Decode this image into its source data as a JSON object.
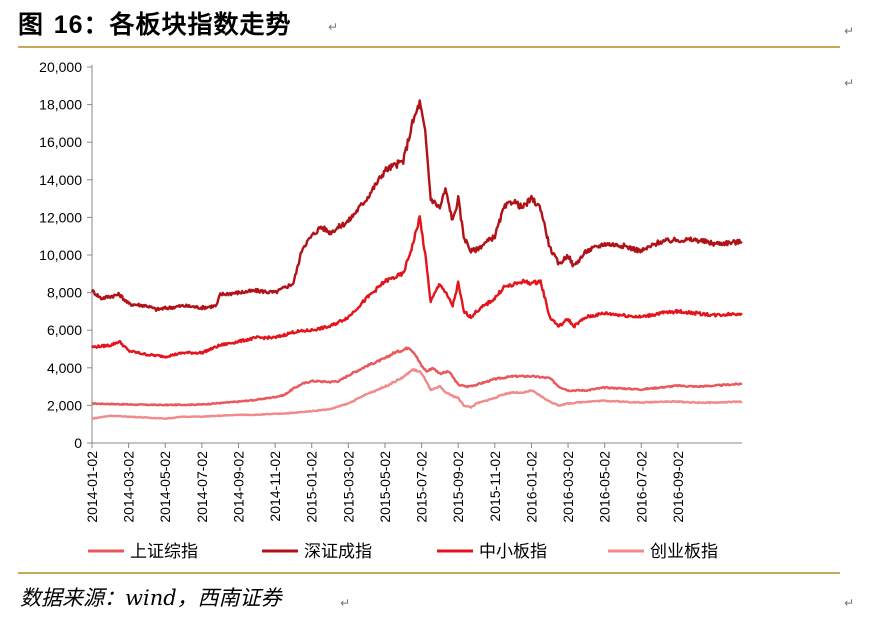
{
  "figure": {
    "title_prefix": "图 ",
    "title_number": "16",
    "title_text": "：各板块指数走势",
    "source": "数据来源：wind，西南证券",
    "return_mark": "↵"
  },
  "colors": {
    "rule": "#c8a85a",
    "axis": "#888888"
  },
  "chart_data": {
    "type": "line",
    "title": "各板块指数走势",
    "xlabel": "",
    "ylabel": "",
    "ylim": [
      0,
      20000
    ],
    "yticks": [
      "0",
      "2,000",
      "4,000",
      "6,000",
      "8,000",
      "10,000",
      "12,000",
      "14,000",
      "16,000",
      "18,000",
      "20,000"
    ],
    "xticks": [
      "2014-01-02",
      "2014-03-02",
      "2014-05-02",
      "2014-07-02",
      "2014-09-02",
      "2014-11-02",
      "2015-01-02",
      "2015-03-02",
      "2015-05-02",
      "2015-07-02",
      "2015-09-02",
      "2015-11-02",
      "2016-01-02",
      "2016-03-02",
      "2016-05-02",
      "2016-07-02",
      "2016-09-02"
    ],
    "x_months_range": [
      0,
      35.5
    ],
    "legend_position": "bottom",
    "series": [
      {
        "name": "上证综指",
        "color": "#e8585c",
        "points": [
          [
            0,
            2100
          ],
          [
            2,
            2050
          ],
          [
            4,
            2020
          ],
          [
            6,
            2050
          ],
          [
            8,
            2200
          ],
          [
            9,
            2300
          ],
          [
            10,
            2450
          ],
          [
            10.5,
            2550
          ],
          [
            11,
            2900
          ],
          [
            11.5,
            3150
          ],
          [
            12,
            3300
          ],
          [
            13,
            3250
          ],
          [
            13.5,
            3300
          ],
          [
            14,
            3600
          ],
          [
            15,
            4100
          ],
          [
            16,
            4500
          ],
          [
            16.5,
            4800
          ],
          [
            17,
            4950
          ],
          [
            17.3,
            5100
          ],
          [
            17.6,
            4800
          ],
          [
            18,
            4100
          ],
          [
            18.3,
            3800
          ],
          [
            18.6,
            4000
          ],
          [
            19,
            3700
          ],
          [
            19.5,
            3800
          ],
          [
            20,
            3100
          ],
          [
            20.5,
            3000
          ],
          [
            21,
            3100
          ],
          [
            22,
            3400
          ],
          [
            23,
            3550
          ],
          [
            24,
            3550
          ],
          [
            25,
            3450
          ],
          [
            25.5,
            3000
          ],
          [
            26,
            2800
          ],
          [
            27,
            2800
          ],
          [
            28,
            2950
          ],
          [
            29,
            2900
          ],
          [
            30,
            2850
          ],
          [
            31,
            2950
          ],
          [
            32,
            3050
          ],
          [
            33,
            3000
          ],
          [
            34,
            3050
          ],
          [
            35.5,
            3150
          ]
        ]
      },
      {
        "name": "深证成指",
        "color": "#b01218",
        "points": [
          [
            0,
            8100
          ],
          [
            0.5,
            7700
          ],
          [
            1.5,
            7900
          ],
          [
            2,
            7400
          ],
          [
            3,
            7300
          ],
          [
            3.5,
            7100
          ],
          [
            5,
            7300
          ],
          [
            6,
            7200
          ],
          [
            6.8,
            7300
          ],
          [
            7,
            7900
          ],
          [
            8,
            8000
          ],
          [
            9,
            8100
          ],
          [
            10,
            8000
          ],
          [
            11,
            8500
          ],
          [
            11.5,
            10400
          ],
          [
            12,
            11000
          ],
          [
            12.5,
            11500
          ],
          [
            13,
            11200
          ],
          [
            14,
            11800
          ],
          [
            15,
            13000
          ],
          [
            16,
            14500
          ],
          [
            17,
            15000
          ],
          [
            17.5,
            17000
          ],
          [
            17.9,
            18100
          ],
          [
            18.2,
            16500
          ],
          [
            18.5,
            13000
          ],
          [
            19,
            12500
          ],
          [
            19.3,
            13500
          ],
          [
            19.7,
            11800
          ],
          [
            20,
            13000
          ],
          [
            20.3,
            11000
          ],
          [
            20.7,
            10200
          ],
          [
            21,
            10300
          ],
          [
            22,
            11000
          ],
          [
            22.5,
            12500
          ],
          [
            23,
            12900
          ],
          [
            23.5,
            12500
          ],
          [
            24,
            13000
          ],
          [
            24.5,
            12500
          ],
          [
            25,
            10400
          ],
          [
            25.5,
            9500
          ],
          [
            26,
            10000
          ],
          [
            26.3,
            9400
          ],
          [
            27,
            10200
          ],
          [
            28,
            10600
          ],
          [
            29,
            10500
          ],
          [
            30,
            10200
          ],
          [
            31,
            10700
          ],
          [
            32,
            10800
          ],
          [
            33,
            10800
          ],
          [
            34,
            10600
          ],
          [
            35.5,
            10700
          ]
        ]
      },
      {
        "name": "中小板指",
        "color": "#e3141c",
        "points": [
          [
            0,
            5100
          ],
          [
            1,
            5200
          ],
          [
            1.5,
            5400
          ],
          [
            2,
            4900
          ],
          [
            3,
            4700
          ],
          [
            4,
            4600
          ],
          [
            5,
            4800
          ],
          [
            6,
            4800
          ],
          [
            7,
            5200
          ],
          [
            8,
            5400
          ],
          [
            9,
            5600
          ],
          [
            10,
            5600
          ],
          [
            11,
            5900
          ],
          [
            12,
            6000
          ],
          [
            13,
            6200
          ],
          [
            14,
            6700
          ],
          [
            15,
            7700
          ],
          [
            16,
            8600
          ],
          [
            17,
            9000
          ],
          [
            17.5,
            10500
          ],
          [
            17.9,
            12000
          ],
          [
            18.2,
            10000
          ],
          [
            18.5,
            7500
          ],
          [
            19,
            8500
          ],
          [
            19.3,
            8000
          ],
          [
            19.7,
            7300
          ],
          [
            20,
            8500
          ],
          [
            20.3,
            7000
          ],
          [
            20.7,
            6700
          ],
          [
            21,
            7000
          ],
          [
            22,
            7700
          ],
          [
            22.5,
            8300
          ],
          [
            23,
            8400
          ],
          [
            23.5,
            8600
          ],
          [
            24,
            8500
          ],
          [
            24.5,
            8600
          ],
          [
            25,
            6700
          ],
          [
            25.5,
            6200
          ],
          [
            26,
            6600
          ],
          [
            26.3,
            6200
          ],
          [
            27,
            6700
          ],
          [
            28,
            6900
          ],
          [
            29,
            6800
          ],
          [
            30,
            6700
          ],
          [
            31,
            6900
          ],
          [
            32,
            7000
          ],
          [
            33,
            6900
          ],
          [
            34,
            6800
          ],
          [
            35.5,
            6900
          ]
        ]
      },
      {
        "name": "创业板指",
        "color": "#f08b8c",
        "points": [
          [
            0,
            1300
          ],
          [
            1,
            1450
          ],
          [
            2,
            1400
          ],
          [
            3,
            1350
          ],
          [
            4,
            1300
          ],
          [
            5,
            1400
          ],
          [
            6,
            1400
          ],
          [
            7,
            1450
          ],
          [
            8,
            1500
          ],
          [
            9,
            1500
          ],
          [
            10,
            1550
          ],
          [
            11,
            1600
          ],
          [
            12,
            1700
          ],
          [
            13,
            1800
          ],
          [
            14,
            2100
          ],
          [
            15,
            2600
          ],
          [
            16,
            3000
          ],
          [
            17,
            3500
          ],
          [
            17.5,
            3900
          ],
          [
            17.9,
            3800
          ],
          [
            18.2,
            3400
          ],
          [
            18.5,
            2800
          ],
          [
            19,
            3000
          ],
          [
            19.3,
            2700
          ],
          [
            19.7,
            2500
          ],
          [
            20,
            2400
          ],
          [
            20.3,
            2000
          ],
          [
            20.7,
            1900
          ],
          [
            21,
            2100
          ],
          [
            22,
            2400
          ],
          [
            22.5,
            2600
          ],
          [
            23,
            2700
          ],
          [
            23.5,
            2650
          ],
          [
            24,
            2800
          ],
          [
            24.5,
            2500
          ],
          [
            25,
            2200
          ],
          [
            25.5,
            2000
          ],
          [
            26,
            2100
          ],
          [
            27,
            2200
          ],
          [
            28,
            2250
          ],
          [
            29,
            2200
          ],
          [
            30,
            2150
          ],
          [
            31,
            2200
          ],
          [
            32,
            2200
          ],
          [
            33,
            2150
          ],
          [
            34,
            2150
          ],
          [
            35.5,
            2200
          ]
        ]
      }
    ]
  }
}
